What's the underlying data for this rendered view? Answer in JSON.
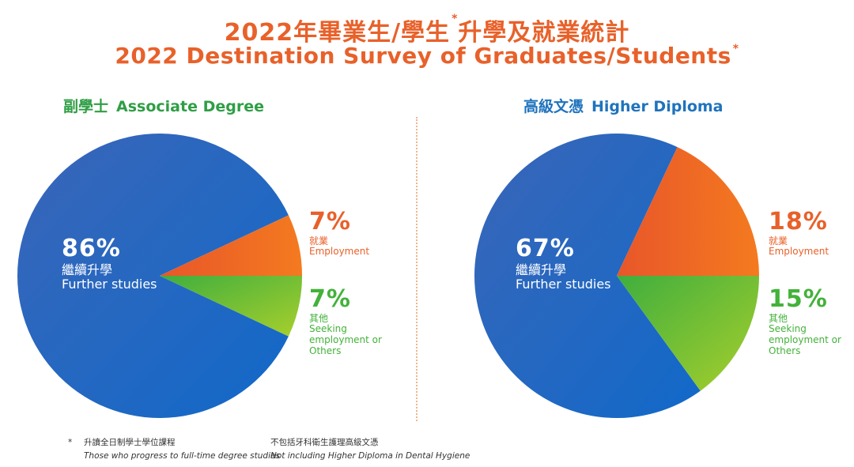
{
  "title": {
    "zh": "2022年畢業生/學生",
    "zh_asterisk": "*",
    "zh_rest": "升學及就業統計",
    "en": "2022 Destination Survey of Graduates/Students",
    "en_asterisk": "*"
  },
  "chart_data": [
    {
      "type": "pie",
      "title_zh": "副學士",
      "title_en": "Associate Degree",
      "slices": [
        {
          "label_zh": "繼續升學",
          "label_en": "Further studies",
          "value": 86,
          "pct": "86%",
          "color": "#1f6fbd"
        },
        {
          "label_zh": "就業",
          "label_en": "Employment",
          "value": 7,
          "pct": "7%",
          "color": "#ee6a24"
        },
        {
          "label_zh": "其他",
          "label_en": "Seeking employment or Others",
          "value": 7,
          "pct": "7%",
          "color": "#7fc43a"
        }
      ]
    },
    {
      "type": "pie",
      "title_zh": "高級文憑",
      "title_en": "Higher Diploma",
      "slices": [
        {
          "label_zh": "繼續升學",
          "label_en": "Further studies",
          "value": 67,
          "pct": "67%",
          "color": "#1f6fbd"
        },
        {
          "label_zh": "就業",
          "label_en": "Employment",
          "value": 18,
          "pct": "18%",
          "color": "#ee6a24"
        },
        {
          "label_zh": "其他",
          "label_en": "Seeking employment or Others",
          "value": 15,
          "pct": "15%",
          "color": "#7fc43a"
        }
      ]
    }
  ],
  "other_en_lines": [
    "Seeking",
    "employment or",
    "Others"
  ],
  "footnotes": {
    "note1": {
      "marker": "*",
      "zh": "升讀全日制學士學位課程",
      "en": "Those who progress to full-time degree studies"
    },
    "note2": {
      "zh": "不包括牙科衛生護理高級文憑",
      "en": "Not including Higher Diploma in Dental Hygiene"
    }
  }
}
